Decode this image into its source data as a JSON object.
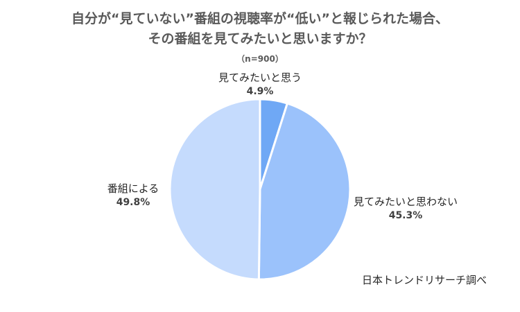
{
  "title_line1": "自分が“見ていない”番組の視聴率が“低い”と報じられた場合、",
  "title_line2": "その番組を見てみたいと思いますか？",
  "note": "（n=900）",
  "source": "日本トレンドリサーチ調べ",
  "chart_data": {
    "type": "pie",
    "title": "自分が“見ていない”番組の視聴率が“低い”と報じられた場合、その番組を見てみたいと思いますか？",
    "categories": [
      "見てみたいと思う",
      "見てみたいと思わない",
      "番組による"
    ],
    "values": [
      4.9,
      45.3,
      49.8
    ],
    "value_labels": [
      "4.9%",
      "45.3%",
      "49.8%"
    ],
    "colors": [
      "#6fa8f5",
      "#9bc2fb",
      "#c5dbfd"
    ],
    "start_angle": "12 o'clock, clockwise",
    "legend": "none (data labels beside slices)"
  }
}
